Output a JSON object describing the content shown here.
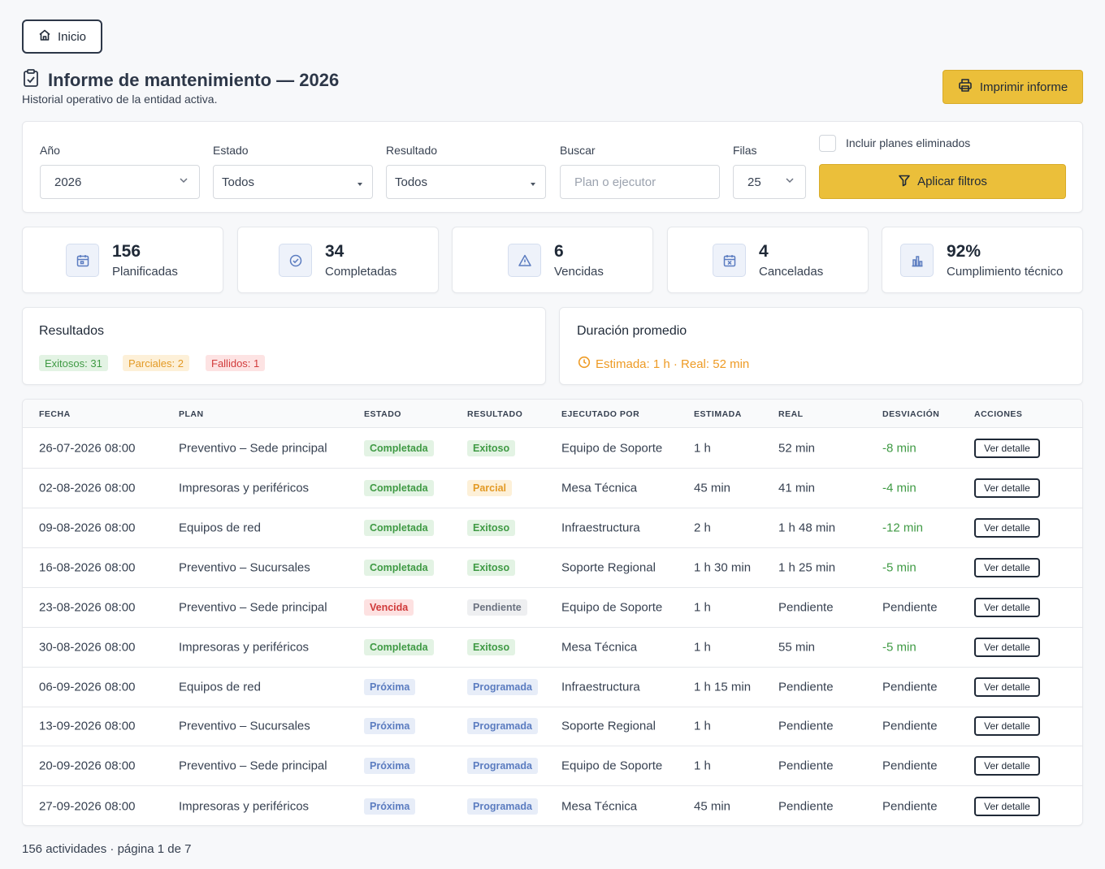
{
  "nav": {
    "home_label": "Inicio"
  },
  "header": {
    "title": "Informe de mantenimiento — 2026",
    "subtitle": "Historial operativo de la entidad activa.",
    "print_label": "Imprimir informe"
  },
  "filters": {
    "year_label": "Año",
    "year_value": "2026",
    "status_label": "Estado",
    "status_value": "Todos",
    "result_label": "Resultado",
    "result_value": "Todos",
    "search_label": "Buscar",
    "search_placeholder": "Plan o ejecutor",
    "rows_label": "Filas",
    "rows_value": "25",
    "include_deleted_label": "Incluir planes eliminados",
    "include_deleted_checked": false,
    "apply_label": "Aplicar filtros"
  },
  "stats": [
    {
      "value": "156",
      "label": "Planificadas",
      "icon": "calendar-icon"
    },
    {
      "value": "34",
      "label": "Completadas",
      "icon": "check-circle-icon"
    },
    {
      "value": "6",
      "label": "Vencidas",
      "icon": "warning-icon"
    },
    {
      "value": "4",
      "label": "Canceladas",
      "icon": "calendar-x-icon"
    },
    {
      "value": "92%",
      "label": "Cumplimiento técnico",
      "icon": "bar-chart-icon"
    }
  ],
  "results": {
    "title": "Resultados",
    "success": "Exitosos: 31",
    "partial": "Parciales: 2",
    "failed": "Fallidos: 1"
  },
  "duration": {
    "title": "Duración promedio",
    "text": "Estimada: 1 h · Real: 52 min"
  },
  "table": {
    "headers": [
      "FECHA",
      "PLAN",
      "ESTADO",
      "RESULTADO",
      "EJECUTADO POR",
      "ESTIMADA",
      "REAL",
      "DESVIACIÓN",
      "ACCIONES"
    ],
    "action_label": "Ver detalle",
    "rows": [
      {
        "date": "26-07-2026 08:00",
        "plan": "Preventivo – Sede principal",
        "status": "Completada",
        "result": "Exitoso",
        "executor": "Equipo de Soporte",
        "estimated": "1 h",
        "real": "52 min",
        "deviation": "-8 min"
      },
      {
        "date": "02-08-2026 08:00",
        "plan": "Impresoras y periféricos",
        "status": "Completada",
        "result": "Parcial",
        "executor": "Mesa Técnica",
        "estimated": "45 min",
        "real": "41 min",
        "deviation": "-4 min"
      },
      {
        "date": "09-08-2026 08:00",
        "plan": "Equipos de red",
        "status": "Completada",
        "result": "Exitoso",
        "executor": "Infraestructura",
        "estimated": "2 h",
        "real": "1 h 48 min",
        "deviation": "-12 min"
      },
      {
        "date": "16-08-2026 08:00",
        "plan": "Preventivo – Sucursales",
        "status": "Completada",
        "result": "Exitoso",
        "executor": "Soporte Regional",
        "estimated": "1 h 30 min",
        "real": "1 h 25 min",
        "deviation": "-5 min"
      },
      {
        "date": "23-08-2026 08:00",
        "plan": "Preventivo – Sede principal",
        "status": "Vencida",
        "result": "Pendiente",
        "executor": "Equipo de Soporte",
        "estimated": "1 h",
        "real": "Pendiente",
        "deviation": "Pendiente"
      },
      {
        "date": "30-08-2026 08:00",
        "plan": "Impresoras y periféricos",
        "status": "Completada",
        "result": "Exitoso",
        "executor": "Mesa Técnica",
        "estimated": "1 h",
        "real": "55 min",
        "deviation": "-5 min"
      },
      {
        "date": "06-09-2026 08:00",
        "plan": "Equipos de red",
        "status": "Próxima",
        "result": "Programada",
        "executor": "Infraestructura",
        "estimated": "1 h 15 min",
        "real": "Pendiente",
        "deviation": "Pendiente"
      },
      {
        "date": "13-09-2026 08:00",
        "plan": "Preventivo – Sucursales",
        "status": "Próxima",
        "result": "Programada",
        "executor": "Soporte Regional",
        "estimated": "1 h",
        "real": "Pendiente",
        "deviation": "Pendiente"
      },
      {
        "date": "20-09-2026 08:00",
        "plan": "Preventivo – Sede principal",
        "status": "Próxima",
        "result": "Programada",
        "executor": "Equipo de Soporte",
        "estimated": "1 h",
        "real": "Pendiente",
        "deviation": "Pendiente"
      },
      {
        "date": "27-09-2026 08:00",
        "plan": "Impresoras y periféricos",
        "status": "Próxima",
        "result": "Programada",
        "executor": "Mesa Técnica",
        "estimated": "45 min",
        "real": "Pendiente",
        "deviation": "Pendiente"
      }
    ]
  },
  "footer": {
    "text": "156 actividades · página 1 de 7"
  },
  "colors": {
    "accent": "#ebbf3a",
    "success": "#3f9a44",
    "warning": "#e39a26",
    "danger": "#d03a3a",
    "info": "#5b7cc0"
  }
}
